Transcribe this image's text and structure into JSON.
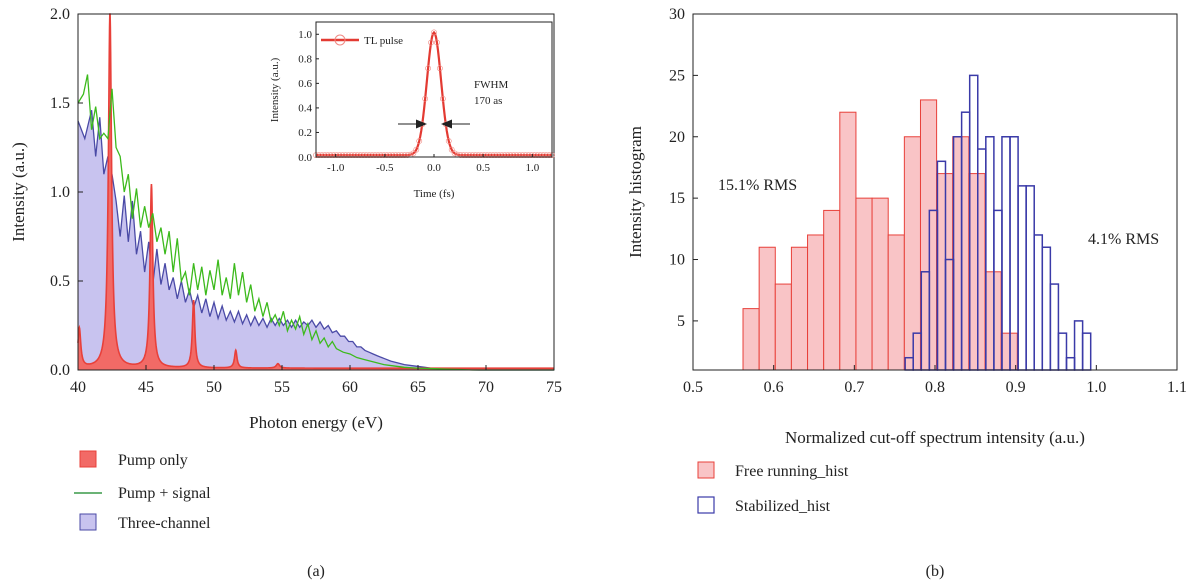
{
  "colors": {
    "pump_only": "#e8403a",
    "pump_only_fill": "#f26a66",
    "pump_signal": "#3cba1c",
    "three_channel": "#4a4aa6",
    "three_channel_fill": "#c8c3ef",
    "free_running": "#e8403a",
    "free_running_fill": "#f9c4c6",
    "stabilized": "#3a3aa8",
    "inset": "#e33a32"
  },
  "panels": {
    "a": {
      "label": "(a)"
    },
    "b": {
      "label": "(b)"
    }
  },
  "chart_data": [
    {
      "id": "a-main",
      "type": "area",
      "xlabel": "Photon energy (eV)",
      "ylabel": "Intensity (a.u.)",
      "xlim": [
        40,
        75
      ],
      "ylim": [
        0,
        2.0
      ],
      "xticks": [
        "40",
        "45",
        "50",
        "55",
        "60",
        "65",
        "70",
        "75"
      ],
      "yticks": [
        "0.0",
        "0.5",
        "1.0",
        "1.5",
        "2.0"
      ],
      "legend": {
        "placement": "bottom-left",
        "entries": [
          "Pump only",
          "Pump + signal",
          "Three-channel"
        ]
      },
      "series": [
        {
          "name": "Pump only",
          "style": "filled-peaks",
          "baseline": 0.01,
          "peaks": [
            {
              "x": 40.1,
              "y": 0.22,
              "w": 0.25
            },
            {
              "x": 42.35,
              "y": 2.0,
              "w": 0.28
            },
            {
              "x": 45.4,
              "y": 1.03,
              "w": 0.25
            },
            {
              "x": 48.5,
              "y": 0.38,
              "w": 0.22
            },
            {
              "x": 51.6,
              "y": 0.1,
              "w": 0.22
            },
            {
              "x": 54.7,
              "y": 0.025,
              "w": 0.3
            }
          ]
        },
        {
          "name": "Pump + signal",
          "style": "line",
          "x": [
            40.0,
            40.4,
            40.7,
            41.0,
            41.3,
            41.6,
            41.9,
            42.2,
            42.5,
            42.8,
            43.1,
            43.4,
            43.7,
            44.0,
            44.3,
            44.6,
            44.9,
            45.2,
            45.5,
            45.8,
            46.1,
            46.4,
            46.7,
            47.0,
            47.3,
            47.6,
            47.9,
            48.2,
            48.5,
            48.8,
            49.1,
            49.4,
            49.7,
            50.0,
            50.3,
            50.6,
            50.9,
            51.2,
            51.5,
            51.8,
            52.1,
            52.4,
            52.7,
            53.0,
            53.3,
            53.6,
            53.9,
            54.2,
            54.5,
            54.8,
            55.1,
            55.4,
            55.7,
            56.0,
            56.3,
            56.6,
            56.9,
            57.2,
            57.5,
            57.8,
            58.1,
            58.4,
            58.7,
            59.0,
            59.5,
            60.0,
            60.5,
            61.0,
            61.5,
            62.0,
            62.5,
            63.0,
            63.5,
            64.0,
            65.0,
            66.0,
            67.0,
            68.0,
            69.0,
            75.0
          ],
          "y": [
            1.5,
            1.55,
            1.66,
            1.35,
            1.48,
            1.3,
            1.33,
            1.3,
            1.58,
            1.25,
            1.2,
            1.0,
            1.1,
            0.85,
            1.02,
            0.8,
            0.92,
            0.8,
            0.88,
            0.72,
            0.8,
            0.65,
            0.78,
            0.55,
            0.74,
            0.5,
            0.55,
            0.42,
            0.6,
            0.45,
            0.58,
            0.42,
            0.56,
            0.45,
            0.62,
            0.42,
            0.52,
            0.4,
            0.6,
            0.42,
            0.55,
            0.38,
            0.48,
            0.33,
            0.4,
            0.3,
            0.38,
            0.27,
            0.31,
            0.25,
            0.33,
            0.22,
            0.28,
            0.23,
            0.3,
            0.2,
            0.26,
            0.17,
            0.22,
            0.15,
            0.18,
            0.13,
            0.16,
            0.12,
            0.1,
            0.09,
            0.07,
            0.06,
            0.05,
            0.04,
            0.03,
            0.025,
            0.02,
            0.015,
            0.01,
            0.008,
            0.005,
            0.003,
            0.0,
            0.0
          ]
        },
        {
          "name": "Three-channel",
          "style": "filled-line",
          "x": [
            40.0,
            40.5,
            41.0,
            41.3,
            41.6,
            41.9,
            42.2,
            42.5,
            42.8,
            43.1,
            43.4,
            43.7,
            44.0,
            44.3,
            44.6,
            44.9,
            45.2,
            45.5,
            45.8,
            46.1,
            46.4,
            46.7,
            47.0,
            47.3,
            47.6,
            47.9,
            48.2,
            48.5,
            48.8,
            49.1,
            49.4,
            49.7,
            50.0,
            50.3,
            50.6,
            50.9,
            51.2,
            51.5,
            51.8,
            52.1,
            52.4,
            52.7,
            53.0,
            53.3,
            53.6,
            53.9,
            54.2,
            54.5,
            54.8,
            55.1,
            55.4,
            55.7,
            56.0,
            56.3,
            56.6,
            56.9,
            57.2,
            57.5,
            57.8,
            58.1,
            58.4,
            58.7,
            59.0,
            59.3,
            59.6,
            59.9,
            60.2,
            60.5,
            60.8,
            61.1,
            61.4,
            61.7,
            62.0,
            62.5,
            63.0,
            63.5,
            64.0,
            64.5,
            65.0,
            65.5,
            66.0,
            66.5,
            67.0,
            67.5,
            68.0,
            68.5,
            69.0,
            69.5,
            75.0
          ],
          "y": [
            1.4,
            1.3,
            1.46,
            1.2,
            1.42,
            1.1,
            1.2,
            1.1,
            0.95,
            0.75,
            0.98,
            0.72,
            0.95,
            0.65,
            0.78,
            0.55,
            0.72,
            0.48,
            0.68,
            0.48,
            0.6,
            0.45,
            0.52,
            0.4,
            0.5,
            0.38,
            0.45,
            0.35,
            0.42,
            0.32,
            0.4,
            0.3,
            0.38,
            0.29,
            0.36,
            0.28,
            0.33,
            0.27,
            0.33,
            0.26,
            0.31,
            0.25,
            0.3,
            0.25,
            0.29,
            0.24,
            0.29,
            0.25,
            0.29,
            0.25,
            0.28,
            0.24,
            0.28,
            0.24,
            0.27,
            0.25,
            0.28,
            0.24,
            0.27,
            0.23,
            0.25,
            0.21,
            0.22,
            0.19,
            0.19,
            0.16,
            0.16,
            0.13,
            0.13,
            0.11,
            0.1,
            0.09,
            0.08,
            0.065,
            0.05,
            0.04,
            0.03,
            0.025,
            0.02,
            0.015,
            0.01,
            0.008,
            0.006,
            0.004,
            0.003,
            0.002,
            0.001,
            0.0,
            0.0
          ]
        }
      ]
    },
    {
      "id": "a-inset",
      "type": "line",
      "xlabel": "Time (fs)",
      "ylabel": "Intensity (a.u.)",
      "xlim": [
        -1.2,
        1.2
      ],
      "ylim": [
        0,
        1.1
      ],
      "xticks": [
        "-1.0",
        "-0.5",
        "0.0",
        "0.5",
        "1.0"
      ],
      "yticks": [
        "0.0",
        "0.2",
        "0.4",
        "0.6",
        "0.8",
        "1.0"
      ],
      "legend": {
        "placement": "top-left",
        "entries": [
          "TL pulse"
        ]
      },
      "annotations": [
        "FWHM",
        "170 as"
      ],
      "series": [
        {
          "name": "TL pulse",
          "shape": "gaussian",
          "center": 0.0,
          "fwhm": 0.17,
          "amplitude": 1.0,
          "baseline": 0.015
        }
      ]
    },
    {
      "id": "b",
      "type": "bar",
      "xlabel": "Normalized cut-off spectrum intensity (a.u.)",
      "ylabel": "Intensity histogram",
      "xlim": [
        0.5,
        1.1
      ],
      "ylim": [
        1,
        30
      ],
      "xticks": [
        "0.5",
        "0.6",
        "0.7",
        "0.8",
        "0.9",
        "1.0",
        "1.1"
      ],
      "yticks": [
        "5",
        "10",
        "15",
        "20",
        "25",
        "30"
      ],
      "legend": {
        "placement": "bottom-left",
        "entries": [
          "Free running_hist",
          "Stabilized_hist"
        ]
      },
      "annotations": [
        "15.1% RMS",
        "4.1% RMS"
      ],
      "series": [
        {
          "name": "Free running_hist",
          "bin_width": 0.02,
          "bin_starts": [
            0.562,
            0.582,
            0.602,
            0.622,
            0.642,
            0.662,
            0.682,
            0.702,
            0.722,
            0.742,
            0.762,
            0.782,
            0.802,
            0.822,
            0.842,
            0.862,
            0.882,
            0.902
          ],
          "values": [
            6,
            11,
            8,
            11,
            12,
            14,
            22,
            15,
            15,
            12,
            20,
            23,
            17,
            20,
            17,
            9,
            4,
            0
          ]
        },
        {
          "name": "Stabilized_hist",
          "bin_width": 0.01,
          "bin_starts": [
            0.763,
            0.773,
            0.783,
            0.793,
            0.803,
            0.813,
            0.823,
            0.833,
            0.843,
            0.853,
            0.863,
            0.873,
            0.883,
            0.893,
            0.903,
            0.913,
            0.923,
            0.933,
            0.943,
            0.953,
            0.963,
            0.973,
            0.983
          ],
          "values": [
            2,
            4,
            9,
            14,
            18,
            10,
            20,
            22,
            25,
            19,
            20,
            14,
            20,
            20,
            16,
            16,
            12,
            11,
            8,
            4,
            2,
            5,
            4
          ]
        }
      ]
    }
  ]
}
